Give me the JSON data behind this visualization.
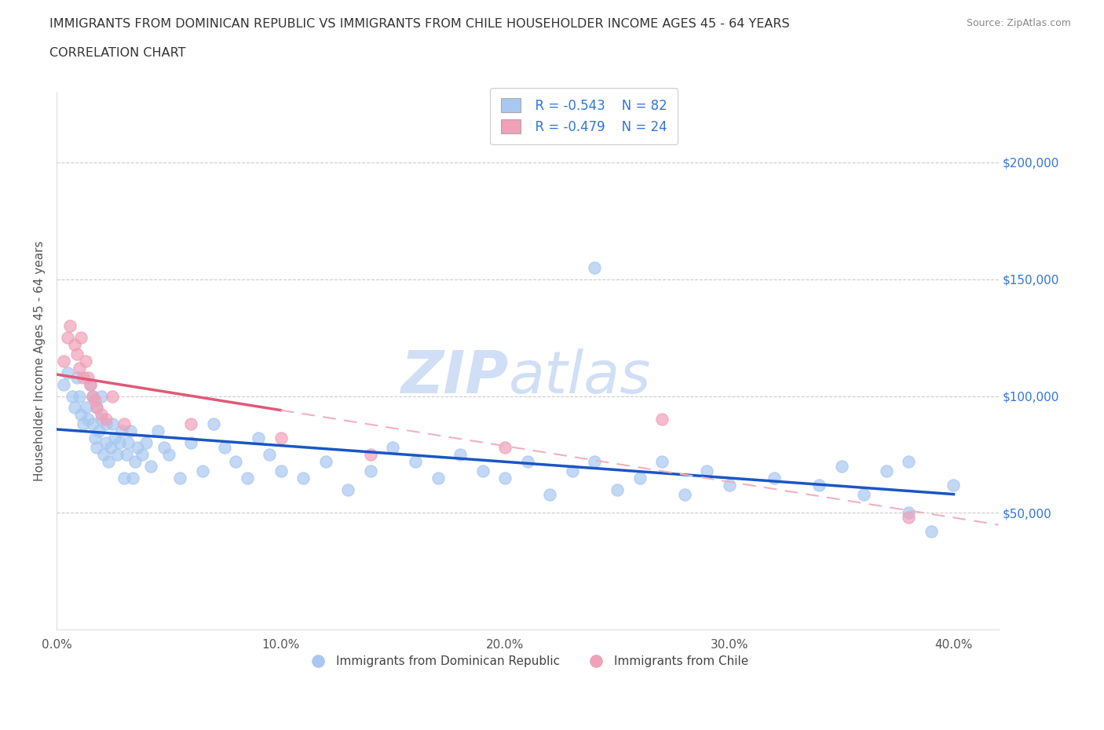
{
  "title_line1": "IMMIGRANTS FROM DOMINICAN REPUBLIC VS IMMIGRANTS FROM CHILE HOUSEHOLDER INCOME AGES 45 - 64 YEARS",
  "title_line2": "CORRELATION CHART",
  "source_text": "Source: ZipAtlas.com",
  "ylabel": "Householder Income Ages 45 - 64 years",
  "xlim": [
    0.0,
    0.42
  ],
  "ylim": [
    0,
    230000
  ],
  "xtick_labels": [
    "0.0%",
    "10.0%",
    "20.0%",
    "30.0%",
    "40.0%"
  ],
  "xtick_values": [
    0.0,
    0.1,
    0.2,
    0.3,
    0.4
  ],
  "ytick_labels": [
    "$50,000",
    "$100,000",
    "$150,000",
    "$200,000"
  ],
  "ytick_values": [
    50000,
    100000,
    150000,
    200000
  ],
  "blue_color": "#a8c8f0",
  "pink_color": "#f0a0b8",
  "blue_line_color": "#1a56c4",
  "pink_line_color": "#e05878",
  "pink_dash_color": "#f0b0c0",
  "watermark_color": "#d0dff5",
  "legend_R_blue": "R = -0.543",
  "legend_N_blue": "N = 82",
  "legend_R_pink": "R = -0.479",
  "legend_N_pink": "N = 24",
  "legend_label_blue": "Immigrants from Dominican Republic",
  "legend_label_pink": "Immigrants from Chile",
  "blue_x": [
    0.003,
    0.005,
    0.007,
    0.008,
    0.009,
    0.01,
    0.011,
    0.012,
    0.013,
    0.014,
    0.015,
    0.016,
    0.016,
    0.017,
    0.018,
    0.018,
    0.019,
    0.02,
    0.02,
    0.021,
    0.022,
    0.022,
    0.023,
    0.024,
    0.025,
    0.026,
    0.027,
    0.028,
    0.029,
    0.03,
    0.031,
    0.032,
    0.033,
    0.034,
    0.035,
    0.036,
    0.038,
    0.04,
    0.042,
    0.045,
    0.048,
    0.05,
    0.055,
    0.06,
    0.065,
    0.07,
    0.075,
    0.08,
    0.085,
    0.09,
    0.095,
    0.1,
    0.11,
    0.12,
    0.13,
    0.14,
    0.15,
    0.16,
    0.17,
    0.18,
    0.19,
    0.2,
    0.21,
    0.22,
    0.23,
    0.24,
    0.25,
    0.26,
    0.27,
    0.28,
    0.29,
    0.3,
    0.32,
    0.34,
    0.35,
    0.36,
    0.37,
    0.38,
    0.39,
    0.4,
    0.24,
    0.38
  ],
  "blue_y": [
    105000,
    110000,
    100000,
    95000,
    108000,
    100000,
    92000,
    88000,
    95000,
    90000,
    105000,
    88000,
    100000,
    82000,
    78000,
    95000,
    85000,
    90000,
    100000,
    75000,
    80000,
    88000,
    72000,
    78000,
    88000,
    82000,
    75000,
    80000,
    85000,
    65000,
    75000,
    80000,
    85000,
    65000,
    72000,
    78000,
    75000,
    80000,
    70000,
    85000,
    78000,
    75000,
    65000,
    80000,
    68000,
    88000,
    78000,
    72000,
    65000,
    82000,
    75000,
    68000,
    65000,
    72000,
    60000,
    68000,
    78000,
    72000,
    65000,
    75000,
    68000,
    65000,
    72000,
    58000,
    68000,
    72000,
    60000,
    65000,
    72000,
    58000,
    68000,
    62000,
    65000,
    62000,
    70000,
    58000,
    68000,
    72000,
    42000,
    62000,
    155000,
    50000
  ],
  "pink_x": [
    0.003,
    0.005,
    0.006,
    0.008,
    0.009,
    0.01,
    0.011,
    0.012,
    0.013,
    0.014,
    0.015,
    0.016,
    0.017,
    0.018,
    0.02,
    0.022,
    0.025,
    0.03,
    0.06,
    0.1,
    0.14,
    0.2,
    0.27,
    0.38
  ],
  "pink_y": [
    115000,
    125000,
    130000,
    122000,
    118000,
    112000,
    125000,
    108000,
    115000,
    108000,
    105000,
    100000,
    98000,
    95000,
    92000,
    90000,
    100000,
    88000,
    88000,
    82000,
    75000,
    78000,
    90000,
    48000
  ]
}
